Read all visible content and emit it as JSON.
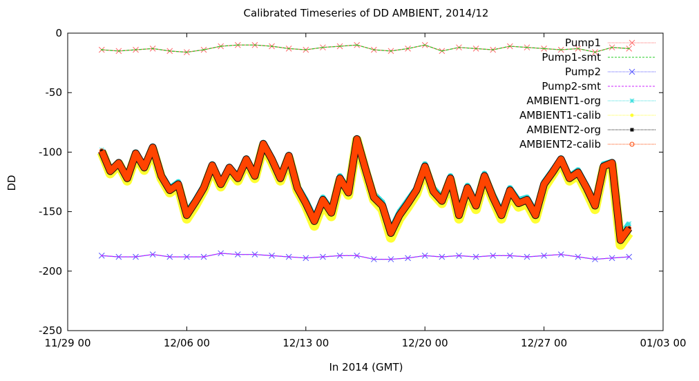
{
  "chart_data": {
    "type": "line",
    "title": "Calibrated Timeseries of DD AMBIENT, 2014/12",
    "xlabel": "In 2014 (GMT)",
    "ylabel": "DD",
    "x_range": [
      "2014-11-29 00:00",
      "2015-01-03 00:00"
    ],
    "ylim": [
      -250,
      0
    ],
    "x_ticks": [
      "11/29 00",
      "12/06 00",
      "12/13 00",
      "12/20 00",
      "12/27 00",
      "01/03 00"
    ],
    "y_ticks": [
      "0",
      "-50",
      "-100",
      "-150",
      "-200",
      "-250"
    ],
    "grid": false,
    "legend_position": "top-right",
    "series": [
      {
        "name": "Pump1",
        "color": "#ff6a6a",
        "marker": "x",
        "x": [
          "12/01 00",
          "12/02 00",
          "12/03 00",
          "12/04 00",
          "12/05 00",
          "12/06 00",
          "12/07 00",
          "12/08 00",
          "12/09 00",
          "12/10 00",
          "12/11 00",
          "12/12 00",
          "12/13 00",
          "12/14 00",
          "12/15 00",
          "12/16 00",
          "12/17 00",
          "12/18 00",
          "12/19 00",
          "12/20 00",
          "12/21 00",
          "12/22 00",
          "12/23 00",
          "12/24 00",
          "12/25 00",
          "12/26 00",
          "12/27 00",
          "12/28 00",
          "12/29 00",
          "12/30 00",
          "12/31 00",
          "01/01 00"
        ],
        "y": [
          -14,
          -15,
          -14,
          -13,
          -15,
          -16,
          -14,
          -11,
          -10,
          -10,
          -11,
          -13,
          -14,
          -12,
          -11,
          -10,
          -14,
          -15,
          -13,
          -10,
          -15,
          -12,
          -13,
          -14,
          -11,
          -12,
          -13,
          -14,
          -13,
          -16,
          -12,
          -13
        ]
      },
      {
        "name": "Pump1-smt",
        "color": "#22cc22",
        "marker": "line",
        "x": [
          "12/01 00",
          "12/02 00",
          "12/03 00",
          "12/04 00",
          "12/05 00",
          "12/06 00",
          "12/07 00",
          "12/08 00",
          "12/09 00",
          "12/10 00",
          "12/11 00",
          "12/12 00",
          "12/13 00",
          "12/14 00",
          "12/15 00",
          "12/16 00",
          "12/17 00",
          "12/18 00",
          "12/19 00",
          "12/20 00",
          "12/21 00",
          "12/22 00",
          "12/23 00",
          "12/24 00",
          "12/25 00",
          "12/26 00",
          "12/27 00",
          "12/28 00",
          "12/29 00",
          "12/30 00",
          "12/31 00",
          "01/01 00"
        ],
        "y": [
          -14,
          -15,
          -14,
          -13,
          -15,
          -16,
          -14,
          -11,
          -10,
          -10,
          -11,
          -13,
          -14,
          -12,
          -11,
          -10,
          -14,
          -15,
          -13,
          -10,
          -15,
          -12,
          -13,
          -14,
          -11,
          -12,
          -13,
          -14,
          -13,
          -16,
          -12,
          -13
        ]
      },
      {
        "name": "Pump2",
        "color": "#5555ff",
        "marker": "x",
        "x": [
          "12/01 00",
          "12/02 00",
          "12/03 00",
          "12/04 00",
          "12/05 00",
          "12/06 00",
          "12/07 00",
          "12/08 00",
          "12/09 00",
          "12/10 00",
          "12/11 00",
          "12/12 00",
          "12/13 00",
          "12/14 00",
          "12/15 00",
          "12/16 00",
          "12/17 00",
          "12/18 00",
          "12/19 00",
          "12/20 00",
          "12/21 00",
          "12/22 00",
          "12/23 00",
          "12/24 00",
          "12/25 00",
          "12/26 00",
          "12/27 00",
          "12/28 00",
          "12/29 00",
          "12/30 00",
          "12/31 00",
          "01/01 00"
        ],
        "y": [
          -187,
          -188,
          -188,
          -186,
          -188,
          -188,
          -188,
          -185,
          -186,
          -186,
          -187,
          -188,
          -189,
          -188,
          -187,
          -187,
          -190,
          -190,
          -189,
          -187,
          -188,
          -187,
          -188,
          -187,
          -187,
          -188,
          -187,
          -186,
          -188,
          -190,
          -189,
          -188
        ]
      },
      {
        "name": "Pump2-smt",
        "color": "#cc22ff",
        "marker": "line",
        "x": [
          "12/01 00",
          "12/02 00",
          "12/03 00",
          "12/04 00",
          "12/05 00",
          "12/06 00",
          "12/07 00",
          "12/08 00",
          "12/09 00",
          "12/10 00",
          "12/11 00",
          "12/12 00",
          "12/13 00",
          "12/14 00",
          "12/15 00",
          "12/16 00",
          "12/17 00",
          "12/18 00",
          "12/19 00",
          "12/20 00",
          "12/21 00",
          "12/22 00",
          "12/23 00",
          "12/24 00",
          "12/25 00",
          "12/26 00",
          "12/27 00",
          "12/28 00",
          "12/29 00",
          "12/30 00",
          "12/31 00",
          "01/01 00"
        ],
        "y": [
          -187,
          -188,
          -188,
          -186,
          -188,
          -188,
          -188,
          -185,
          -186,
          -186,
          -187,
          -188,
          -189,
          -188,
          -187,
          -187,
          -190,
          -190,
          -189,
          -187,
          -188,
          -187,
          -188,
          -187,
          -187,
          -188,
          -187,
          -186,
          -188,
          -190,
          -189,
          -188
        ]
      },
      {
        "name": "AMBIENT1-org",
        "color": "#33dddd",
        "marker": "star",
        "x": [
          "12/01 00",
          "12/01 12",
          "12/02 00",
          "12/02 12",
          "12/03 00",
          "12/03 12",
          "12/04 00",
          "12/04 12",
          "12/05 00",
          "12/05 12",
          "12/06 00",
          "12/06 12",
          "12/07 00",
          "12/07 12",
          "12/08 00",
          "12/08 12",
          "12/09 00",
          "12/09 12",
          "12/10 00",
          "12/10 12",
          "12/11 00",
          "12/11 12",
          "12/12 00",
          "12/12 12",
          "12/13 00",
          "12/13 12",
          "12/14 00",
          "12/14 12",
          "12/15 00",
          "12/15 12",
          "12/16 00",
          "12/16 12",
          "12/17 00",
          "12/17 12",
          "12/18 00",
          "12/18 12",
          "12/19 00",
          "12/19 12",
          "12/20 00",
          "12/20 12",
          "12/21 00",
          "12/21 12",
          "12/22 00",
          "12/22 12",
          "12/23 00",
          "12/23 12",
          "12/24 00",
          "12/24 12",
          "12/25 00",
          "12/25 12",
          "12/26 00",
          "12/26 12",
          "12/27 00",
          "12/27 12",
          "12/28 00",
          "12/28 12",
          "12/29 00",
          "12/29 12",
          "12/30 00",
          "12/30 12",
          "12/31 00",
          "12/31 12",
          "01/01 00"
        ],
        "y": [
          -98,
          -115,
          -108,
          -120,
          -100,
          -112,
          -95,
          -118,
          -130,
          -125,
          -150,
          -140,
          -128,
          -110,
          -125,
          -112,
          -120,
          -105,
          -118,
          -92,
          -105,
          -120,
          -102,
          -128,
          -140,
          -155,
          -138,
          -148,
          -120,
          -132,
          -88,
          -112,
          -135,
          -142,
          -165,
          -150,
          -140,
          -130,
          -110,
          -130,
          -138,
          -120,
          -150,
          -128,
          -142,
          -118,
          -135,
          -150,
          -130,
          -140,
          -138,
          -150,
          -125,
          -115,
          -105,
          -120,
          -115,
          -128,
          -142,
          -110,
          -108,
          -170,
          -160
        ]
      },
      {
        "name": "AMBIENT1-calib",
        "color": "#ffff33",
        "marker": "dot",
        "x": [
          "12/01 00",
          "12/01 12",
          "12/02 00",
          "12/02 12",
          "12/03 00",
          "12/03 12",
          "12/04 00",
          "12/04 12",
          "12/05 00",
          "12/05 12",
          "12/06 00",
          "12/06 12",
          "12/07 00",
          "12/07 12",
          "12/08 00",
          "12/08 12",
          "12/09 00",
          "12/09 12",
          "12/10 00",
          "12/10 12",
          "12/11 00",
          "12/11 12",
          "12/12 00",
          "12/12 12",
          "12/13 00",
          "12/13 12",
          "12/14 00",
          "12/14 12",
          "12/15 00",
          "12/15 12",
          "12/16 00",
          "12/16 12",
          "12/17 00",
          "12/17 12",
          "12/18 00",
          "12/18 12",
          "12/19 00",
          "12/19 12",
          "12/20 00",
          "12/20 12",
          "12/21 00",
          "12/21 12",
          "12/22 00",
          "12/22 12",
          "12/23 00",
          "12/23 12",
          "12/24 00",
          "12/24 12",
          "12/25 00",
          "12/25 12",
          "12/26 00",
          "12/26 12",
          "12/27 00",
          "12/27 12",
          "12/28 00",
          "12/28 12",
          "12/29 00",
          "12/29 12",
          "12/30 00",
          "12/30 12",
          "12/31 00",
          "12/31 12",
          "01/01 00"
        ],
        "y": [
          -100,
          -118,
          -110,
          -124,
          -103,
          -115,
          -98,
          -122,
          -134,
          -129,
          -156,
          -145,
          -132,
          -113,
          -129,
          -115,
          -124,
          -108,
          -122,
          -95,
          -108,
          -124,
          -105,
          -132,
          -145,
          -162,
          -143,
          -154,
          -124,
          -136,
          -90,
          -116,
          -140,
          -148,
          -172,
          -156,
          -146,
          -135,
          -114,
          -135,
          -143,
          -124,
          -156,
          -133,
          -148,
          -122,
          -140,
          -156,
          -135,
          -146,
          -143,
          -156,
          -130,
          -119,
          -108,
          -124,
          -119,
          -133,
          -148,
          -114,
          -111,
          -178,
          -168
        ]
      },
      {
        "name": "AMBIENT2-org",
        "color": "#111111",
        "marker": "square",
        "x": [
          "12/01 00",
          "12/01 12",
          "12/02 00",
          "12/02 12",
          "12/03 00",
          "12/03 12",
          "12/04 00",
          "12/04 12",
          "12/05 00",
          "12/05 12",
          "12/06 00",
          "12/06 12",
          "12/07 00",
          "12/07 12",
          "12/08 00",
          "12/08 12",
          "12/09 00",
          "12/09 12",
          "12/10 00",
          "12/10 12",
          "12/11 00",
          "12/11 12",
          "12/12 00",
          "12/12 12",
          "12/13 00",
          "12/13 12",
          "12/14 00",
          "12/14 12",
          "12/15 00",
          "12/15 12",
          "12/16 00",
          "12/16 12",
          "12/17 00",
          "12/17 12",
          "12/18 00",
          "12/18 12",
          "12/19 00",
          "12/19 12",
          "12/20 00",
          "12/20 12",
          "12/21 00",
          "12/21 12",
          "12/22 00",
          "12/22 12",
          "12/23 00",
          "12/23 12",
          "12/24 00",
          "12/24 12",
          "12/25 00",
          "12/25 12",
          "12/26 00",
          "12/26 12",
          "12/27 00",
          "12/27 12",
          "12/28 00",
          "12/28 12",
          "12/29 00",
          "12/29 12",
          "12/30 00",
          "12/30 12",
          "12/31 00",
          "12/31 12",
          "01/01 00"
        ],
        "y": [
          -99,
          -116,
          -109,
          -122,
          -101,
          -113,
          -96,
          -120,
          -132,
          -127,
          -153,
          -142,
          -130,
          -111,
          -127,
          -113,
          -122,
          -106,
          -120,
          -93,
          -106,
          -122,
          -103,
          -130,
          -143,
          -158,
          -140,
          -151,
          -122,
          -134,
          -89,
          -114,
          -138,
          -145,
          -168,
          -153,
          -143,
          -132,
          -112,
          -133,
          -141,
          -122,
          -153,
          -130,
          -145,
          -120,
          -138,
          -153,
          -132,
          -143,
          -140,
          -153,
          -127,
          -117,
          -106,
          -122,
          -117,
          -130,
          -145,
          -112,
          -109,
          -174,
          -164
        ]
      },
      {
        "name": "AMBIENT2-calib",
        "color": "#ff4400",
        "marker": "circle",
        "x": [
          "12/01 00",
          "12/01 12",
          "12/02 00",
          "12/02 12",
          "12/03 00",
          "12/03 12",
          "12/04 00",
          "12/04 12",
          "12/05 00",
          "12/05 12",
          "12/06 00",
          "12/06 12",
          "12/07 00",
          "12/07 12",
          "12/08 00",
          "12/08 12",
          "12/09 00",
          "12/09 12",
          "12/10 00",
          "12/10 12",
          "12/11 00",
          "12/11 12",
          "12/12 00",
          "12/12 12",
          "12/13 00",
          "12/13 12",
          "12/14 00",
          "12/14 12",
          "12/15 00",
          "12/15 12",
          "12/16 00",
          "12/16 12",
          "12/17 00",
          "12/17 12",
          "12/18 00",
          "12/18 12",
          "12/19 00",
          "12/19 12",
          "12/20 00",
          "12/20 12",
          "12/21 00",
          "12/21 12",
          "12/22 00",
          "12/22 12",
          "12/23 00",
          "12/23 12",
          "12/24 00",
          "12/24 12",
          "12/25 00",
          "12/25 12",
          "12/26 00",
          "12/26 12",
          "12/27 00",
          "12/27 12",
          "12/28 00",
          "12/28 12",
          "12/29 00",
          "12/29 12",
          "12/30 00",
          "12/30 12",
          "12/31 00",
          "12/31 12",
          "01/01 00"
        ],
        "y": [
          -99,
          -116,
          -109,
          -122,
          -101,
          -113,
          -96,
          -120,
          -132,
          -127,
          -153,
          -142,
          -130,
          -111,
          -127,
          -113,
          -122,
          -106,
          -120,
          -93,
          -106,
          -122,
          -103,
          -130,
          -143,
          -158,
          -140,
          -151,
          -122,
          -134,
          -89,
          -114,
          -138,
          -145,
          -168,
          -153,
          -143,
          -132,
          -112,
          -133,
          -141,
          -122,
          -153,
          -130,
          -145,
          -120,
          -138,
          -153,
          -132,
          -143,
          -140,
          -153,
          -127,
          -117,
          -106,
          -122,
          -117,
          -130,
          -145,
          -112,
          -109,
          -174,
          -164
        ]
      }
    ]
  }
}
